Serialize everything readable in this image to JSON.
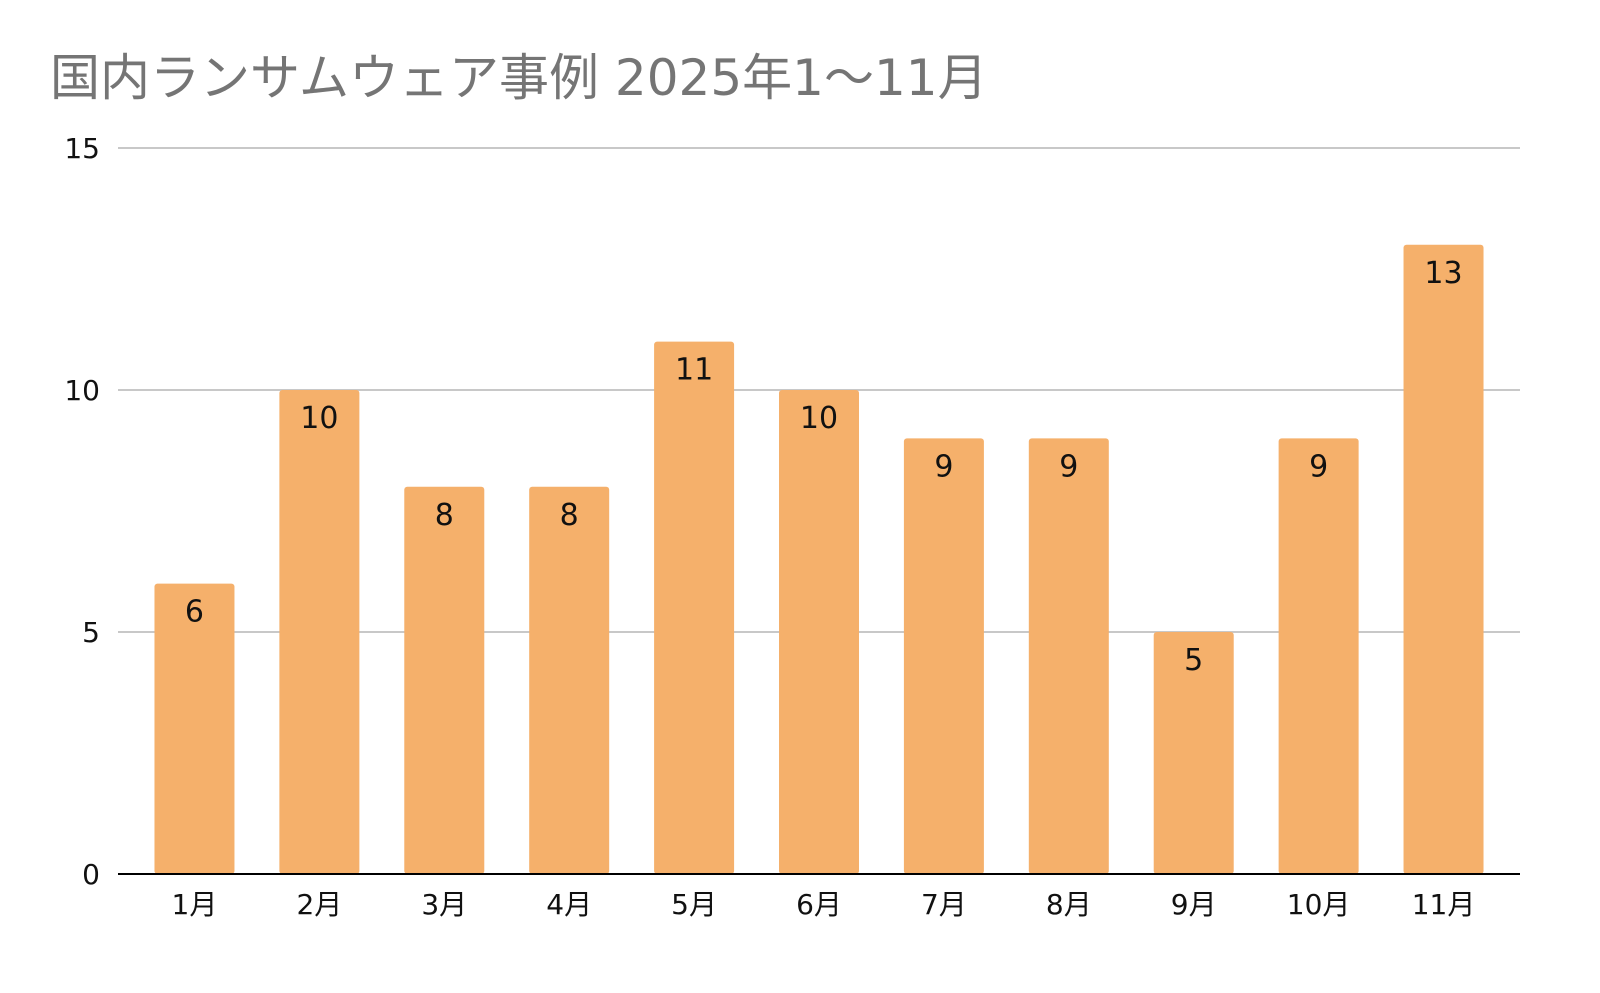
{
  "chart_data": {
    "type": "bar",
    "title": "国内ランサムウェア事例 2025年1〜11月",
    "categories": [
      "1月",
      "2月",
      "3月",
      "4月",
      "5月",
      "6月",
      "7月",
      "8月",
      "9月",
      "10月",
      "11月"
    ],
    "values": [
      6,
      10,
      8,
      8,
      11,
      10,
      9,
      9,
      5,
      9,
      13
    ],
    "ylim": [
      0,
      15
    ],
    "yticks": [
      0,
      5,
      10,
      15
    ],
    "xlabel": "",
    "ylabel": "",
    "grid": true,
    "show_data_labels": true,
    "colors": {
      "bar": "#f5b06b",
      "grid": "#c8c8c8",
      "axis": "#000000",
      "title": "#757575",
      "text": "#111111"
    }
  }
}
